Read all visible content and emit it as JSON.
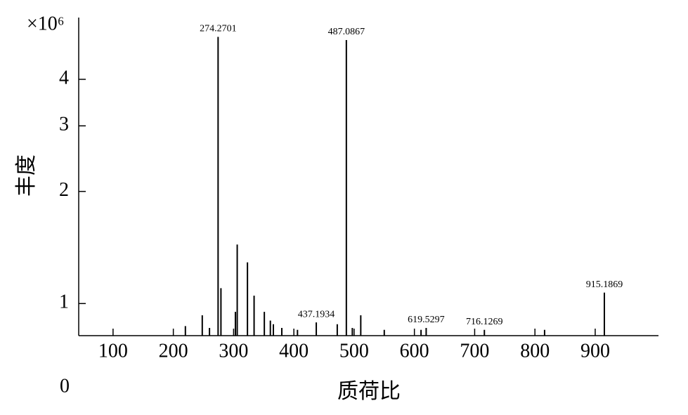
{
  "chart_data": {
    "type": "spectrum",
    "x_label": "质荷比",
    "y_label": "丰度",
    "y_multiplier": "×10⁶",
    "origin_label": "0",
    "log_y": true,
    "color": "#000000",
    "xlim": [
      43,
      1005
    ],
    "ylim": [
      0.82,
      5.86
    ],
    "xticks": [
      100,
      200,
      300,
      400,
      500,
      600,
      700,
      800,
      900
    ],
    "yticks": [
      1,
      2,
      3,
      4
    ],
    "x": [
      220,
      248,
      260,
      274.2701,
      279,
      303,
      306,
      323,
      334,
      351,
      361,
      366,
      380,
      406,
      437.1934,
      472,
      487.0867,
      497,
      511,
      550,
      611,
      619.5297,
      716.1269,
      816,
      915.1869
    ],
    "values": [
      0.87,
      0.93,
      0.86,
      5.2,
      1.1,
      0.95,
      1.44,
      1.29,
      1.05,
      0.95,
      0.9,
      0.88,
      0.86,
      0.85,
      0.89,
      0.88,
      5.1,
      0.86,
      0.93,
      0.85,
      0.85,
      0.86,
      0.85,
      0.85,
      1.07
    ],
    "labeled_peaks": [
      3,
      14,
      16,
      21,
      22,
      24
    ]
  }
}
